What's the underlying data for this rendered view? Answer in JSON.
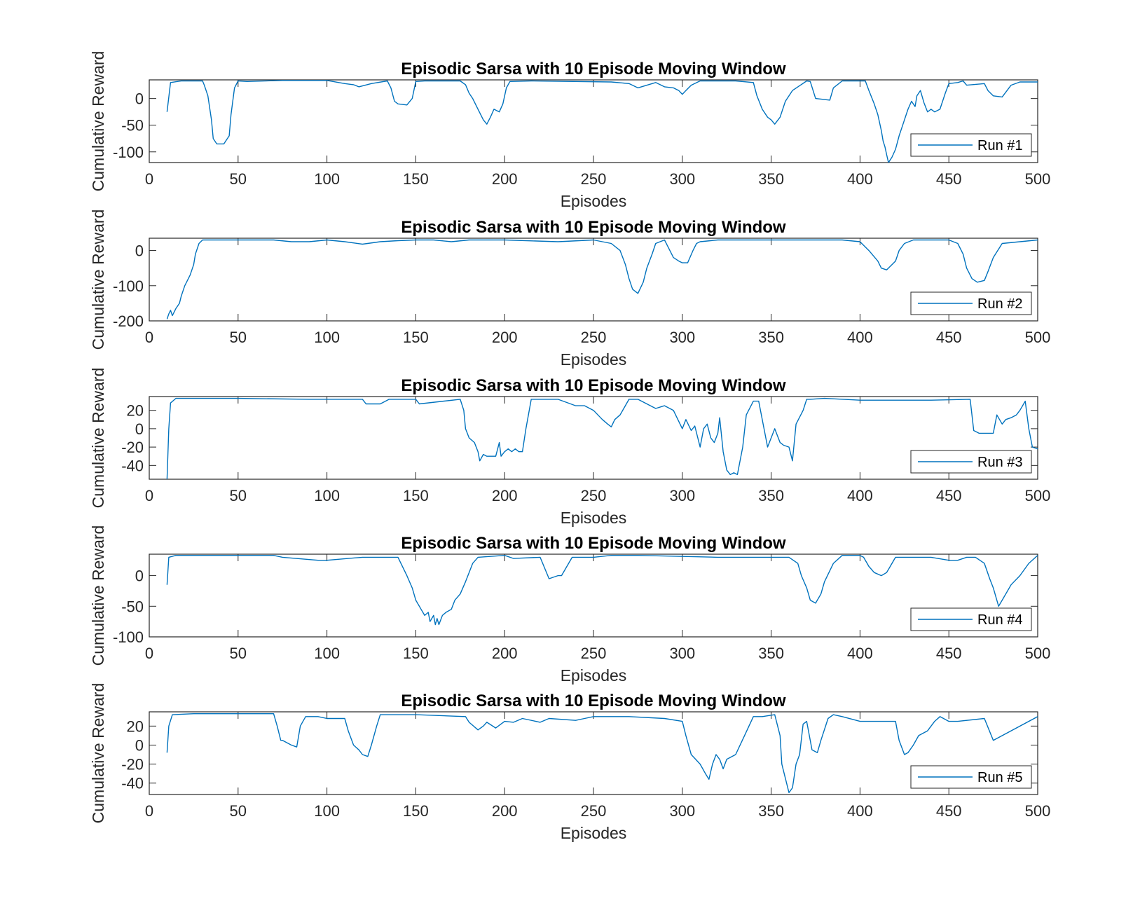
{
  "colors": {
    "series": "#0072BD",
    "axis": "#262626",
    "background": "#ffffff"
  },
  "chart_data": [
    {
      "type": "line",
      "title": "Episodic Sarsa with 10 Episode Moving Window",
      "xlabel": "Episodes",
      "ylabel": "Cumulative Reward",
      "xlim": [
        0,
        500
      ],
      "ylim": [
        -120,
        35
      ],
      "xticks": [
        0,
        50,
        100,
        150,
        200,
        250,
        300,
        350,
        400,
        450,
        500
      ],
      "xtick_labels": [
        "0",
        "50",
        "100",
        "150",
        "200",
        "250",
        "300",
        "350",
        "400",
        "450",
        "500"
      ],
      "yticks": [
        -100,
        -50,
        0
      ],
      "ytick_labels": [
        "-100",
        "-50",
        "0"
      ],
      "legend": "bottom-right",
      "series": [
        {
          "name": "Run #1",
          "x": [
            10,
            12,
            18,
            30,
            31,
            33,
            35,
            36,
            38,
            42,
            43,
            45,
            46,
            48,
            50,
            55,
            75,
            100,
            110,
            115,
            118,
            125,
            134,
            136,
            138,
            140,
            145,
            148,
            150,
            155,
            175,
            178,
            180,
            182,
            185,
            188,
            190,
            192,
            194,
            197,
            199,
            201,
            203,
            215,
            260,
            270,
            275,
            285,
            290,
            295,
            298,
            300,
            302,
            305,
            310,
            330,
            340,
            342,
            345,
            348,
            350,
            352,
            355,
            358,
            362,
            370,
            372,
            375,
            383,
            385,
            390,
            403,
            405,
            408,
            410,
            412,
            413,
            414,
            415,
            416,
            418,
            420,
            422,
            424,
            425,
            427,
            429,
            431,
            432,
            434,
            436,
            438,
            440,
            442,
            445,
            448,
            450,
            455,
            458,
            460,
            470,
            472,
            475,
            480,
            485,
            490,
            500
          ],
          "values": [
            -25,
            30,
            33,
            33,
            25,
            5,
            -40,
            -75,
            -85,
            -85,
            -80,
            -70,
            -30,
            20,
            33,
            32,
            34,
            34,
            28,
            26,
            22,
            28,
            33,
            20,
            -5,
            -10,
            -12,
            0,
            32,
            33,
            33,
            26,
            10,
            0,
            -20,
            -40,
            -48,
            -35,
            -20,
            -25,
            -10,
            20,
            32,
            33,
            31,
            28,
            20,
            30,
            22,
            20,
            15,
            8,
            15,
            25,
            33,
            33,
            30,
            5,
            -20,
            -35,
            -40,
            -48,
            -35,
            -5,
            15,
            33,
            32,
            0,
            -3,
            20,
            33,
            33,
            15,
            -10,
            -30,
            -60,
            -80,
            -90,
            -105,
            -120,
            -110,
            -95,
            -70,
            -50,
            -40,
            -20,
            -5,
            -15,
            5,
            15,
            -8,
            -25,
            -20,
            -25,
            -20,
            10,
            28,
            30,
            33,
            25,
            28,
            15,
            5,
            3,
            25,
            31,
            31
          ]
        }
      ]
    },
    {
      "type": "line",
      "title": "Episodic Sarsa with 10 Episode Moving Window",
      "xlabel": "Episodes",
      "ylabel": "Cumulative Reward",
      "xlim": [
        0,
        500
      ],
      "ylim": [
        -200,
        35
      ],
      "xticks": [
        0,
        50,
        100,
        150,
        200,
        250,
        300,
        350,
        400,
        450,
        500
      ],
      "xtick_labels": [
        "0",
        "50",
        "100",
        "150",
        "200",
        "250",
        "300",
        "350",
        "400",
        "450",
        "500"
      ],
      "yticks": [
        -200,
        -100,
        0
      ],
      "ytick_labels": [
        "-200",
        "-100",
        "0"
      ],
      "legend": "bottom-right",
      "series": [
        {
          "name": "Run #2",
          "x": [
            10,
            11,
            12,
            13,
            14,
            15,
            17,
            18,
            20,
            22,
            23,
            25,
            26,
            28,
            30,
            50,
            70,
            80,
            90,
            100,
            110,
            120,
            130,
            140,
            150,
            160,
            170,
            180,
            200,
            230,
            250,
            260,
            265,
            268,
            270,
            272,
            275,
            278,
            280,
            283,
            285,
            290,
            292,
            295,
            298,
            300,
            303,
            306,
            308,
            310,
            320,
            350,
            390,
            400,
            405,
            410,
            412,
            415,
            418,
            420,
            422,
            425,
            430,
            450,
            455,
            458,
            460,
            463,
            466,
            470,
            472,
            475,
            480,
            500
          ],
          "values": [
            -195,
            -180,
            -170,
            -185,
            -175,
            -165,
            -150,
            -130,
            -100,
            -80,
            -70,
            -40,
            -10,
            20,
            30,
            30,
            30,
            25,
            25,
            30,
            25,
            18,
            25,
            28,
            30,
            30,
            25,
            30,
            30,
            25,
            30,
            20,
            0,
            -40,
            -80,
            -110,
            -122,
            -90,
            -50,
            -10,
            20,
            30,
            10,
            -20,
            -30,
            -35,
            -35,
            0,
            20,
            25,
            30,
            30,
            30,
            25,
            0,
            -30,
            -50,
            -55,
            -40,
            -30,
            0,
            20,
            30,
            30,
            20,
            -10,
            -50,
            -80,
            -90,
            -85,
            -60,
            -20,
            20,
            30
          ]
        }
      ]
    },
    {
      "type": "line",
      "title": "Episodic Sarsa with 10 Episode Moving Window",
      "xlabel": "Episodes",
      "ylabel": "Cumulative Reward",
      "xlim": [
        0,
        500
      ],
      "ylim": [
        -55,
        35
      ],
      "xticks": [
        0,
        50,
        100,
        150,
        200,
        250,
        300,
        350,
        400,
        450,
        500
      ],
      "xtick_labels": [
        "0",
        "50",
        "100",
        "150",
        "200",
        "250",
        "300",
        "350",
        "400",
        "450",
        "500"
      ],
      "yticks": [
        -40,
        -20,
        0,
        20
      ],
      "ytick_labels": [
        "-40",
        "-20",
        "0",
        "20"
      ],
      "legend": "bottom-right",
      "series": [
        {
          "name": "Run #3",
          "x": [
            10,
            11,
            12,
            15,
            50,
            90,
            120,
            122,
            130,
            135,
            150,
            152,
            175,
            177,
            178,
            180,
            183,
            185,
            186,
            188,
            190,
            192,
            195,
            197,
            198,
            200,
            202,
            204,
            206,
            208,
            210,
            212,
            215,
            230,
            240,
            245,
            250,
            255,
            258,
            260,
            262,
            265,
            270,
            275,
            285,
            290,
            295,
            300,
            302,
            305,
            307,
            310,
            312,
            314,
            316,
            318,
            320,
            321,
            323,
            325,
            327,
            329,
            331,
            334,
            336,
            340,
            343,
            348,
            352,
            355,
            357,
            360,
            362,
            364,
            368,
            370,
            372,
            380,
            400,
            440,
            462,
            464,
            467,
            470,
            475,
            477,
            480,
            482,
            485,
            488,
            490,
            493,
            495,
            497,
            500
          ],
          "values": [
            -55,
            0,
            28,
            33,
            33,
            32,
            32,
            27,
            27,
            32,
            32,
            27,
            32,
            20,
            0,
            -10,
            -15,
            -25,
            -35,
            -28,
            -30,
            -30,
            -30,
            -15,
            -30,
            -25,
            -22,
            -25,
            -22,
            -25,
            -25,
            0,
            32,
            32,
            25,
            25,
            20,
            10,
            5,
            2,
            10,
            15,
            32,
            32,
            22,
            25,
            20,
            0,
            10,
            -2,
            3,
            -20,
            0,
            5,
            -10,
            -15,
            -5,
            12,
            -25,
            -45,
            -50,
            -48,
            -50,
            -20,
            15,
            30,
            30,
            -20,
            0,
            -15,
            -18,
            -20,
            -35,
            5,
            20,
            32,
            32,
            33,
            31,
            31,
            32,
            -2,
            -5,
            -5,
            -5,
            15,
            5,
            10,
            12,
            15,
            20,
            30,
            0,
            -20,
            -22
          ]
        }
      ]
    },
    {
      "type": "line",
      "title": "Episodic Sarsa with 10 Episode Moving Window",
      "xlabel": "Episodes",
      "ylabel": "Cumulative Reward",
      "xlim": [
        0,
        500
      ],
      "ylim": [
        -100,
        35
      ],
      "xticks": [
        0,
        50,
        100,
        150,
        200,
        250,
        300,
        350,
        400,
        450,
        500
      ],
      "xtick_labels": [
        "0",
        "50",
        "100",
        "150",
        "200",
        "250",
        "300",
        "350",
        "400",
        "450",
        "500"
      ],
      "yticks": [
        -100,
        -50,
        0
      ],
      "ytick_labels": [
        "-100",
        "-50",
        "0"
      ],
      "legend": "bottom-right",
      "series": [
        {
          "name": "Run #4",
          "x": [
            10,
            11,
            15,
            70,
            75,
            95,
            100,
            120,
            140,
            145,
            148,
            150,
            153,
            155,
            157,
            158,
            160,
            161,
            162,
            163,
            165,
            167,
            170,
            172,
            175,
            178,
            180,
            182,
            185,
            200,
            205,
            220,
            225,
            230,
            232,
            238,
            250,
            260,
            275,
            320,
            350,
            360,
            365,
            367,
            370,
            372,
            375,
            378,
            380,
            385,
            390,
            400,
            402,
            405,
            408,
            412,
            415,
            420,
            440,
            450,
            455,
            460,
            465,
            470,
            473,
            475,
            478,
            480,
            485,
            490,
            495,
            500
          ],
          "values": [
            -15,
            30,
            33,
            33,
            30,
            25,
            25,
            30,
            30,
            0,
            -20,
            -40,
            -55,
            -65,
            -60,
            -75,
            -65,
            -80,
            -70,
            -80,
            -65,
            -60,
            -55,
            -40,
            -30,
            -10,
            5,
            20,
            30,
            33,
            28,
            30,
            -5,
            0,
            0,
            30,
            30,
            33,
            33,
            30,
            30,
            30,
            20,
            0,
            -20,
            -40,
            -45,
            -30,
            -10,
            20,
            33,
            33,
            30,
            15,
            5,
            0,
            5,
            30,
            30,
            25,
            25,
            30,
            30,
            20,
            -5,
            -20,
            -50,
            -40,
            -15,
            0,
            20,
            33
          ]
        }
      ]
    },
    {
      "type": "line",
      "title": "Episodic Sarsa with 10 Episode Moving Window",
      "xlabel": "Episodes",
      "ylabel": "Cumulative Reward",
      "xlim": [
        0,
        500
      ],
      "ylim": [
        -52,
        35
      ],
      "xticks": [
        0,
        50,
        100,
        150,
        200,
        250,
        300,
        350,
        400,
        450,
        500
      ],
      "xtick_labels": [
        "0",
        "50",
        "100",
        "150",
        "200",
        "250",
        "300",
        "350",
        "400",
        "450",
        "500"
      ],
      "yticks": [
        -40,
        -20,
        0,
        20
      ],
      "ytick_labels": [
        "-40",
        "-20",
        "0",
        "20"
      ],
      "legend": "bottom-right",
      "series": [
        {
          "name": "Run #5",
          "x": [
            10,
            11,
            13,
            25,
            50,
            70,
            72,
            74,
            75,
            80,
            83,
            85,
            88,
            95,
            100,
            110,
            112,
            115,
            118,
            120,
            123,
            125,
            128,
            130,
            150,
            178,
            180,
            185,
            188,
            190,
            195,
            200,
            205,
            210,
            220,
            225,
            240,
            245,
            250,
            270,
            290,
            300,
            302,
            305,
            310,
            313,
            315,
            317,
            319,
            321,
            323,
            325,
            330,
            335,
            340,
            345,
            352,
            355,
            356,
            358,
            360,
            362,
            364,
            366,
            368,
            370,
            373,
            376,
            378,
            382,
            385,
            390,
            400,
            420,
            422,
            425,
            427,
            430,
            433,
            438,
            442,
            445,
            450,
            455,
            470,
            475,
            500
          ],
          "values": [
            -8,
            20,
            32,
            33,
            33,
            33,
            20,
            5,
            5,
            0,
            -2,
            20,
            30,
            30,
            28,
            28,
            15,
            0,
            -5,
            -10,
            -12,
            0,
            20,
            32,
            32,
            30,
            24,
            16,
            20,
            24,
            18,
            25,
            24,
            28,
            24,
            28,
            26,
            28,
            30,
            30,
            28,
            25,
            10,
            -10,
            -20,
            -30,
            -36,
            -20,
            -10,
            -15,
            -25,
            -15,
            -10,
            10,
            30,
            30,
            32,
            10,
            -20,
            -35,
            -50,
            -45,
            -20,
            -10,
            22,
            25,
            -5,
            -8,
            5,
            28,
            32,
            30,
            25,
            25,
            5,
            -10,
            -8,
            0,
            10,
            15,
            25,
            30,
            25,
            25,
            28,
            5,
            30
          ]
        }
      ]
    }
  ]
}
